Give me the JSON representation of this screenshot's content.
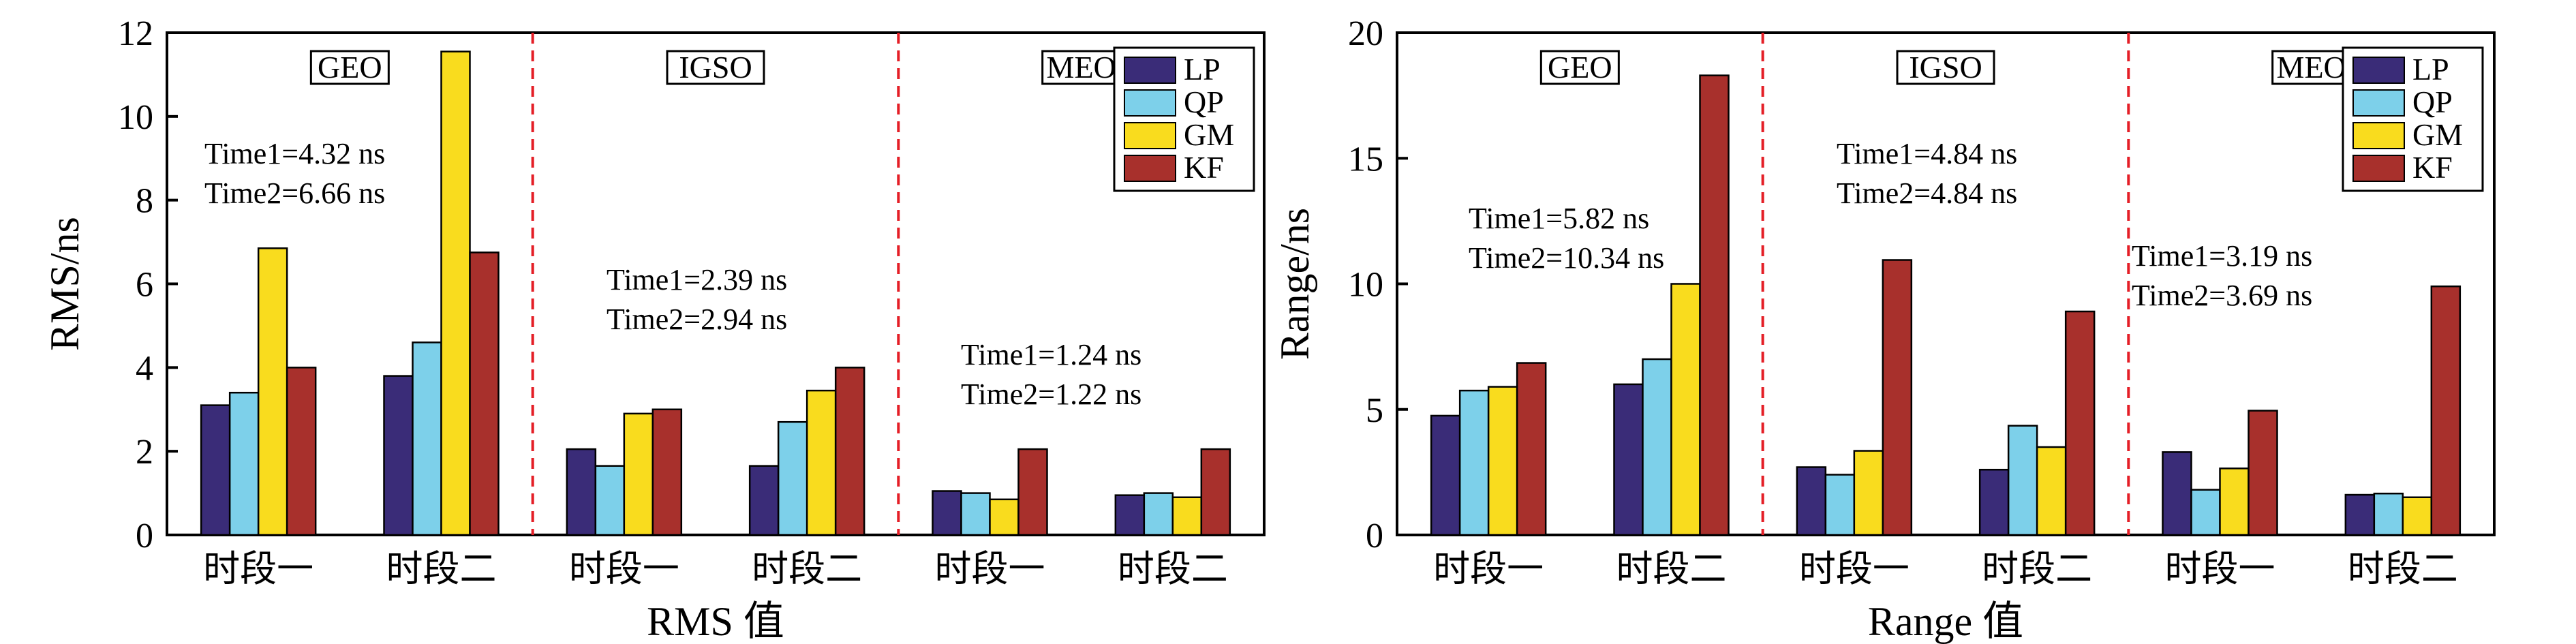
{
  "colors": {
    "LP": "#3a2c78",
    "QP": "#7dd0ea",
    "GM": "#f9dc1e",
    "KF": "#a8302c",
    "divider": "#e41e26"
  },
  "chart_data": [
    {
      "type": "bar",
      "ylabel": "RMS/ns",
      "xlabel": "RMS 值",
      "ylim": [
        0,
        12
      ],
      "yticks": [
        0,
        2,
        4,
        6,
        8,
        10,
        12
      ],
      "categories": [
        "时段一",
        "时段二",
        "时段一",
        "时段二",
        "时段一",
        "时段二"
      ],
      "groups": [
        "GEO",
        "IGSO",
        "MEO"
      ],
      "legend_position": "top-right",
      "series": [
        {
          "name": "LP",
          "values": [
            3.1,
            3.8,
            2.05,
            1.65,
            1.05,
            0.95
          ]
        },
        {
          "name": "QP",
          "values": [
            3.4,
            4.6,
            1.65,
            2.7,
            1.0,
            1.0
          ]
        },
        {
          "name": "GM",
          "values": [
            6.85,
            11.55,
            2.9,
            3.45,
            0.85,
            0.9
          ]
        },
        {
          "name": "KF",
          "values": [
            4.0,
            6.75,
            3.0,
            4.0,
            2.05,
            2.05
          ]
        }
      ],
      "annotations": [
        {
          "group": "GEO",
          "line1": "Time1=4.32 ns",
          "line2": "Time2=6.66 ns"
        },
        {
          "group": "IGSO",
          "line1": "Time1=2.39 ns",
          "line2": "Time2=2.94 ns"
        },
        {
          "group": "MEO",
          "line1": "Time1=1.24 ns",
          "line2": "Time2=1.22 ns"
        }
      ]
    },
    {
      "type": "bar",
      "ylabel": "Range/ns",
      "xlabel": "Range 值",
      "ylim": [
        0,
        20
      ],
      "yticks": [
        0,
        5,
        10,
        15,
        20
      ],
      "categories": [
        "时段一",
        "时段二",
        "时段一",
        "时段二",
        "时段一",
        "时段二"
      ],
      "groups": [
        "GEO",
        "IGSO",
        "MEO"
      ],
      "legend_position": "top-right",
      "series": [
        {
          "name": "LP",
          "values": [
            4.75,
            6.0,
            2.7,
            2.6,
            3.3,
            1.6
          ]
        },
        {
          "name": "QP",
          "values": [
            5.75,
            7.0,
            2.4,
            4.35,
            1.8,
            1.65
          ]
        },
        {
          "name": "GM",
          "values": [
            5.9,
            10.0,
            3.35,
            3.5,
            2.65,
            1.5
          ]
        },
        {
          "name": "KF",
          "values": [
            6.85,
            18.3,
            10.95,
            8.9,
            4.95,
            9.9
          ]
        }
      ],
      "annotations": [
        {
          "group": "GEO",
          "line1": "Time1=5.82 ns",
          "line2": "Time2=10.34 ns"
        },
        {
          "group": "IGSO",
          "line1": "Time1=4.84 ns",
          "line2": "Time2=4.84 ns"
        },
        {
          "group": "MEO",
          "line1": "Time1=3.19 ns",
          "line2": "Time2=3.69 ns"
        }
      ]
    }
  ]
}
